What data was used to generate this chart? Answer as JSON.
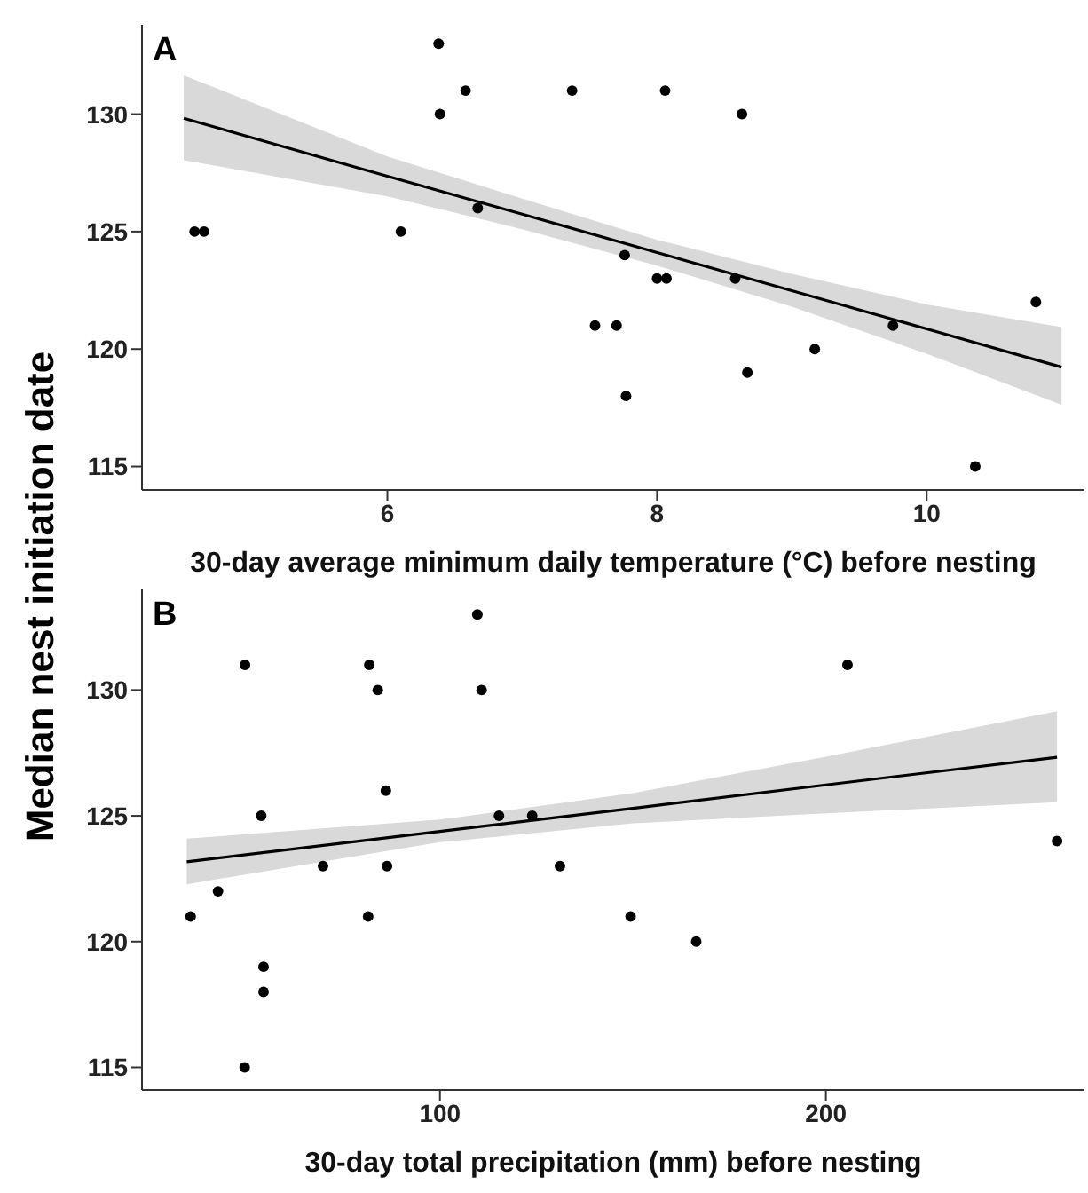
{
  "chart_data": [
    {
      "type": "scatter",
      "title": "A",
      "xlabel": "30-day average minimum daily temperature (°C) before nesting",
      "ylabel": "Median nest initiation date",
      "xlim": [
        4.18,
        11.17
      ],
      "xticks": [
        6,
        8,
        10
      ],
      "ylim": [
        114,
        133.8
      ],
      "yticks": [
        115,
        120,
        125,
        130
      ],
      "series": [
        {
          "marker": "circle",
          "color": "#000000",
          "x": [
            4.57,
            4.64,
            6.38,
            6.58,
            6.39,
            6.67,
            6.1,
            7.37,
            8.06,
            8.63,
            7.76,
            8.0,
            8.07,
            8.58,
            7.54,
            7.7,
            7.77,
            8.67,
            9.17,
            9.75,
            10.81,
            10.36
          ],
          "values": [
            125,
            125,
            133,
            131,
            130,
            126,
            125,
            131,
            131,
            130,
            124,
            123,
            123,
            123,
            121,
            121,
            118,
            119,
            120,
            121,
            122,
            115
          ]
        },
        {
          "type": "line",
          "marker": "none",
          "color": "#000000",
          "x": [
            4.49,
            6,
            7,
            8,
            9,
            10,
            11
          ],
          "values": [
            129.82,
            127.36,
            125.74,
            124.11,
            122.48,
            120.86,
            119.23
          ],
          "lower": [
            128.04,
            126.5,
            125.1,
            123.55,
            121.8,
            119.8,
            117.63
          ],
          "upper": [
            131.65,
            128.2,
            126.4,
            124.65,
            123.2,
            121.9,
            120.93
          ]
        }
      ]
    },
    {
      "type": "scatter",
      "title": "B",
      "xlabel": "30-day total precipitation (mm) before nesting",
      "xlim": [
        22.8,
        267
      ],
      "xticks": [
        100,
        200
      ],
      "ylim": [
        114.1,
        134
      ],
      "yticks": [
        115,
        120,
        125,
        130
      ],
      "series": [
        {
          "marker": "circle",
          "color": "#000000",
          "x": [
            35.4,
            42.5,
            49.5,
            53.7,
            54.3,
            54.3,
            49.4,
            69.7,
            81.4,
            81.7,
            83.9,
            86.0,
            86.3,
            109.7,
            110.8,
            115.3,
            123.9,
            131.1,
            149.4,
            166.4,
            205.6,
            259.9
          ],
          "values": [
            121,
            122,
            131,
            125,
            119,
            118,
            115,
            123,
            121,
            131,
            130,
            126,
            123,
            133,
            130,
            125,
            125,
            123,
            121,
            120,
            131,
            124
          ]
        },
        {
          "type": "line",
          "marker": "none",
          "color": "#000000",
          "x": [
            34.4,
            100,
            150,
            200,
            259.9
          ],
          "values": [
            123.17,
            124.38,
            125.3,
            126.23,
            127.33
          ],
          "lower": [
            122.28,
            123.95,
            124.7,
            125.1,
            125.54
          ],
          "upper": [
            124.09,
            124.85,
            125.9,
            127.35,
            129.16
          ]
        }
      ]
    }
  ]
}
